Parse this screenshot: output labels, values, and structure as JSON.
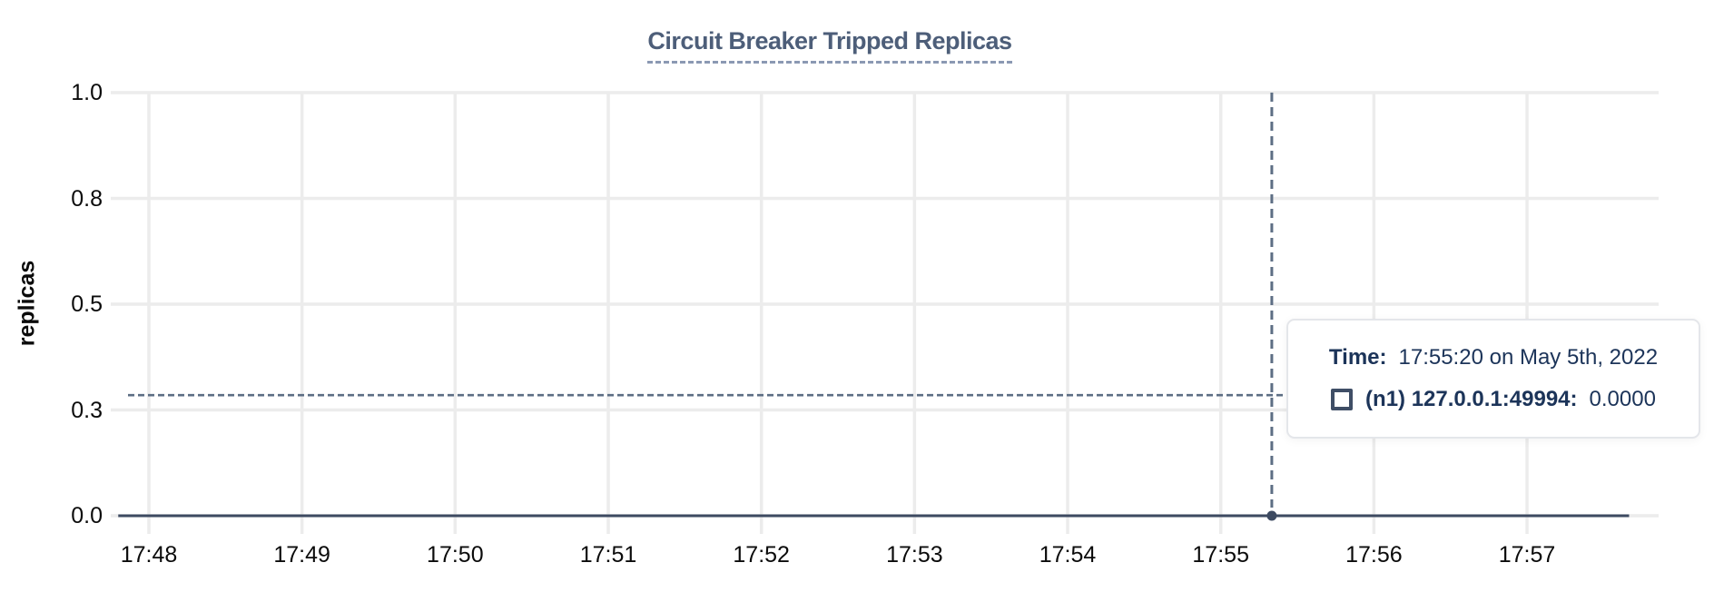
{
  "page": {
    "background": "#ffffff"
  },
  "title": {
    "text": "Circuit Breaker Tripped Replicas"
  },
  "y_axis": {
    "label": "replicas",
    "tick_labels": [
      "0.0",
      "0.3",
      "0.5",
      "0.8",
      "1.0"
    ]
  },
  "x_axis": {
    "tick_labels": [
      "17:48",
      "17:49",
      "17:50",
      "17:51",
      "17:52",
      "17:53",
      "17:54",
      "17:55",
      "17:56",
      "17:57"
    ]
  },
  "tooltip": {
    "time_label": "Time:",
    "time_value": "17:55:20 on May 5th, 2022",
    "series_swatch": "square-outline-icon",
    "series_name": "(n1) 127.0.0.1:49994:",
    "series_value": "0.0000"
  },
  "colors": {
    "title": "#4d5e79",
    "title_underline": "#8b99b3",
    "grid": "#ececec",
    "series_line": "#3d4a61",
    "crosshair": "#5d6e84",
    "axis_text": "#0b0b0b",
    "tooltip_text": "#1c3459",
    "tooltip_border": "#e4e6ea",
    "swatch_outline": "#3f4e66"
  },
  "chart_data": {
    "type": "line",
    "title": "Circuit Breaker Tripped Replicas",
    "xlabel": "",
    "ylabel": "replicas",
    "x_ticks": [
      "17:48",
      "17:49",
      "17:50",
      "17:51",
      "17:52",
      "17:53",
      "17:54",
      "17:55",
      "17:56",
      "17:57"
    ],
    "y_ticks": [
      0,
      0.25,
      0.5,
      0.75,
      1.0
    ],
    "y_tick_labels": [
      "0.0",
      "0.3",
      "0.5",
      "0.8",
      "1.0"
    ],
    "ylim": [
      0,
      1.0
    ],
    "grid": true,
    "legend_position": "tooltip",
    "series": [
      {
        "name": "(n1) 127.0.0.1:49994",
        "points": [
          {
            "t": "17:47:48",
            "v": 0.0
          },
          {
            "t": "17:57:40",
            "v": 0.0
          }
        ]
      }
    ],
    "crosshair": {
      "time": "17:55:20",
      "y_value": 0.285
    },
    "hovered_point": {
      "time": "17:55:20 on May 5th, 2022",
      "series": "(n1) 127.0.0.1:49994",
      "value": 0.0,
      "value_label": "0.0000"
    }
  }
}
